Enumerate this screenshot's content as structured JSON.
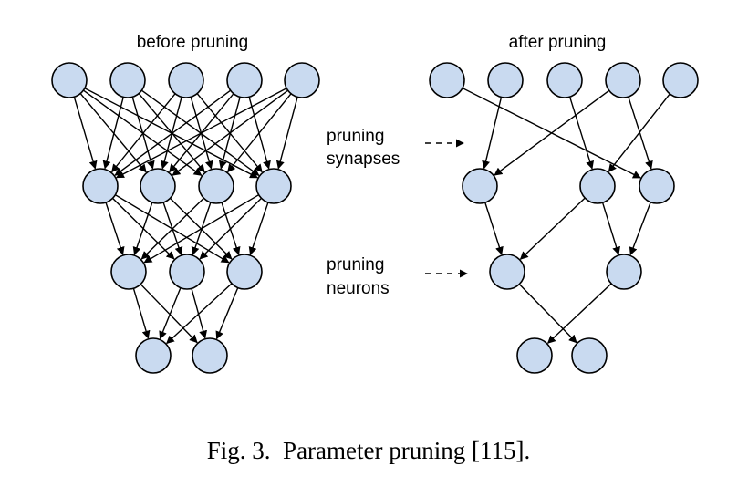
{
  "left_title": "before pruning",
  "right_title": "after pruning",
  "synapse_label": [
    "pruning",
    "synapses"
  ],
  "neuron_label": [
    "pruning",
    "neurons"
  ],
  "caption": "Fig. 3.  Parameter pruning [115].",
  "colors": {
    "node_fill": "#c9daf0",
    "stroke": "#000000"
  },
  "before": {
    "layers": [
      5,
      4,
      3,
      2
    ],
    "connectivity": "fully-connected"
  },
  "after": {
    "layers": [
      5,
      3,
      2,
      2
    ],
    "edges": [
      [
        0,
        0,
        1,
        2
      ],
      [
        0,
        1,
        1,
        0
      ],
      [
        0,
        2,
        1,
        1
      ],
      [
        0,
        3,
        1,
        0
      ],
      [
        0,
        3,
        1,
        2
      ],
      [
        0,
        4,
        1,
        1
      ],
      [
        1,
        0,
        2,
        0
      ],
      [
        1,
        1,
        2,
        0
      ],
      [
        1,
        1,
        2,
        1
      ],
      [
        1,
        2,
        2,
        1
      ],
      [
        2,
        0,
        3,
        1
      ],
      [
        2,
        1,
        3,
        0
      ]
    ]
  }
}
